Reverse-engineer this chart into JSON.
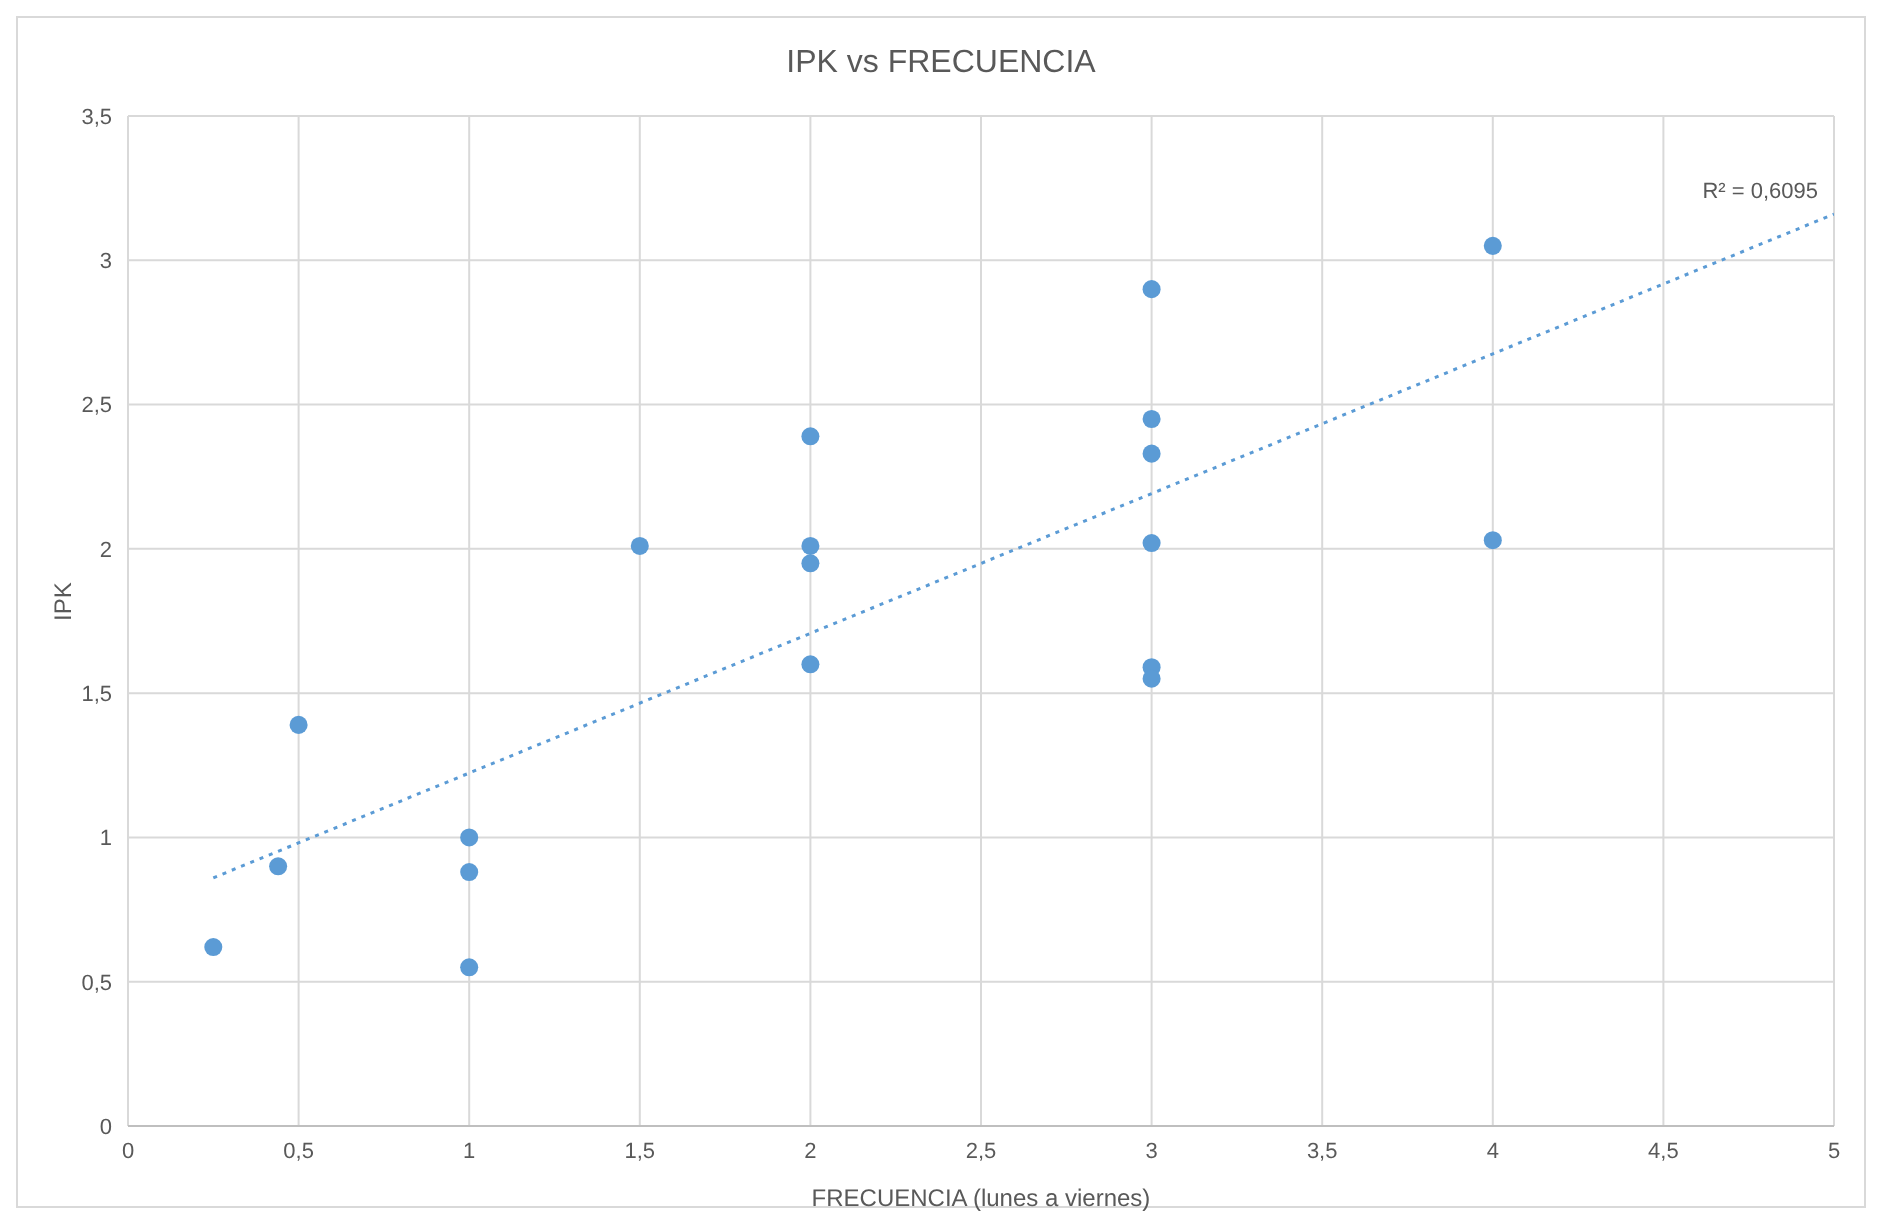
{
  "chart_data": {
    "type": "scatter",
    "title": "IPK vs FRECUENCIA",
    "xlabel": "FRECUENCIA (lunes a viernes)",
    "ylabel": "IPK",
    "series": [
      {
        "color": "#5b9bd5",
        "marker": "circle",
        "x": [
          0.25,
          0.44,
          0.5,
          1,
          1,
          1,
          1.5,
          2,
          2,
          2,
          2,
          3,
          3,
          3,
          3,
          3,
          3,
          4,
          4
        ],
        "values": [
          0.62,
          0.9,
          1.39,
          1.0,
          0.88,
          0.55,
          2.01,
          2.39,
          2.01,
          1.95,
          1.6,
          2.9,
          2.45,
          2.33,
          2.02,
          1.59,
          1.55,
          3.05,
          2.03
        ]
      },
      {
        "type": "line",
        "color": "#5b9bd5",
        "line_style": "dotted",
        "marker": "none",
        "x": [
          0.25,
          5
        ],
        "values": [
          0.86,
          3.16
        ]
      }
    ],
    "xlim": [
      0,
      5
    ],
    "xticks": [
      0,
      {
        "value": 0.5,
        "label": "0,5"
      },
      1,
      {
        "value": 1.5,
        "label": "1,5"
      },
      2,
      {
        "value": 2.5,
        "label": "2,5"
      },
      3,
      {
        "value": 3.5,
        "label": "3,5"
      },
      4,
      {
        "value": 4.5,
        "label": "4,5"
      },
      5
    ],
    "ylim": [
      0,
      3.5
    ],
    "yticks": [
      0,
      {
        "value": 0.5,
        "label": "0,5"
      },
      1,
      {
        "value": 1.5,
        "label": "1,5"
      },
      2,
      {
        "value": 2.5,
        "label": "2,5"
      },
      3,
      {
        "value": 3.5,
        "label": "3,5"
      }
    ],
    "grid": true,
    "legend": false,
    "annotations": [
      {
        "text": "R² = 0,6095",
        "x": 5,
        "y": 3.16
      }
    ]
  }
}
